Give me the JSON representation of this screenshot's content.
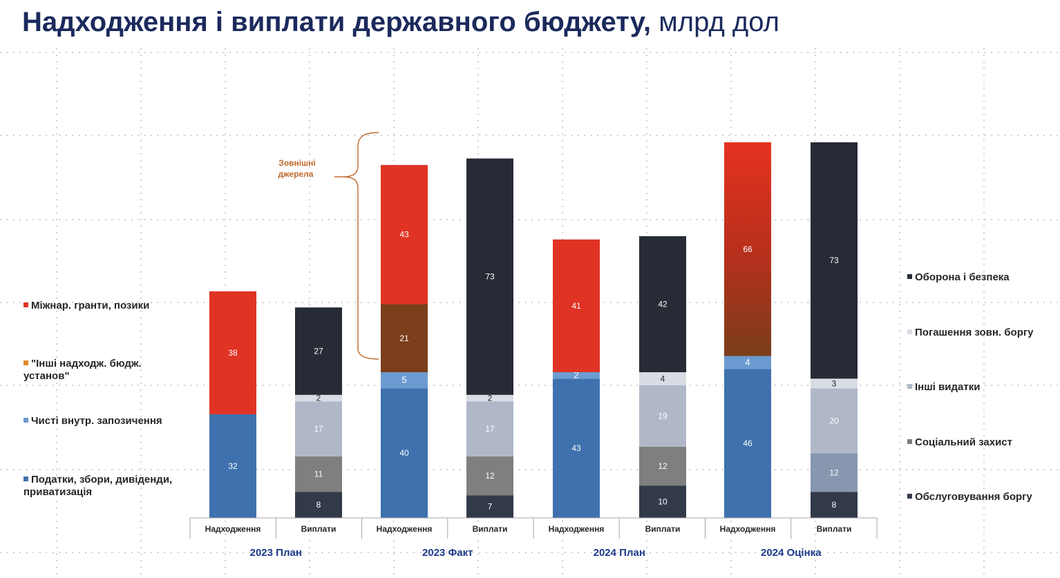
{
  "title": {
    "bold": "Надходження і виплати державного бюджету,",
    "normal": "млрд дол"
  },
  "annotation": {
    "text_line1": "Зовнішні",
    "text_line2": "джерела",
    "color": "#c0682a"
  },
  "chart_data": {
    "type": "bar",
    "stacked": true,
    "groups": [
      "2023 План",
      "2023 Факт",
      "2024 План",
      "2024 Оцінка"
    ],
    "bar_labels": [
      "Надходження",
      "Виплати"
    ],
    "revenue_series": [
      {
        "name": "Податки, збори, дивіденди, приватизація",
        "color": "#3e71ae",
        "values": [
          32,
          40,
          43,
          46
        ]
      },
      {
        "name": "Чисті внутр. запозичення",
        "color": "#6c9bd1",
        "values": [
          0,
          5,
          2,
          4
        ]
      },
      {
        "name": "\"Інші надходж. бюдж. установ\"",
        "color": "#e2892c",
        "values": [
          0,
          21,
          0,
          0
        ]
      },
      {
        "name": "Міжнар. гранти, позики",
        "color": "#e03324",
        "values": [
          38,
          43,
          41,
          66
        ]
      }
    ],
    "revenue_segment_colors": {
      "2023 Факт": {
        "\"Інші надходж. бюдж. установ\"": "#7a3e1a"
      }
    },
    "expense_series": [
      {
        "name": "Обслуговування боргу",
        "color": "#323a4a",
        "values": [
          8,
          7,
          10,
          8
        ]
      },
      {
        "name": "Соціальний захист",
        "color": "#7f7f7f",
        "values": [
          11,
          12,
          12,
          12
        ]
      },
      {
        "name": "Інші видатки",
        "color": "#b0b8c8",
        "values": [
          17,
          17,
          19,
          20
        ]
      },
      {
        "name": "Погашення зовн. боргу",
        "color": "#d8dce3",
        "values": [
          2,
          2,
          4,
          3
        ]
      },
      {
        "name": "Оборона і безпека",
        "color": "#262b35",
        "values": [
          27,
          73,
          42,
          73
        ]
      }
    ],
    "expense_segment_colors": {
      "2024 Оцінка": {
        "Соціальний захист": "#8797b0"
      }
    },
    "legend_left": [
      {
        "name": "Міжнар. гранти, позики",
        "color": "#e03324"
      },
      {
        "name": "\"Інші надходж. бюдж.\nустанов\"",
        "color": "#e2892c"
      },
      {
        "name": "Чисті внутр. запозичення",
        "color": "#6c9bd1"
      },
      {
        "name": "Податки, збори, дивіденди,\nприватизація",
        "color": "#3e71ae"
      }
    ],
    "legend_right": [
      {
        "name": "Оборона і безпека",
        "color": "#262b35"
      },
      {
        "name": "Погашення зовн. боргу",
        "color": "#d8dce3"
      },
      {
        "name": "Інші видатки",
        "color": "#b0b8c8"
      },
      {
        "name": "Соціальний захист",
        "color": "#7f7f7f"
      },
      {
        "name": "Обслуговування боргу",
        "color": "#323a4a"
      }
    ],
    "grid": "dotted",
    "legend_placement": "left and right"
  }
}
